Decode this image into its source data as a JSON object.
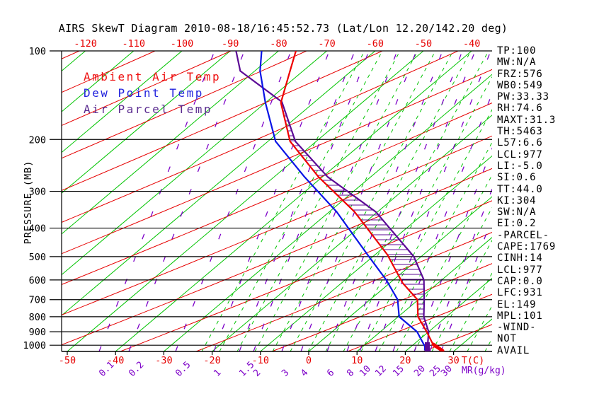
{
  "title": "AIRS SkewT Diagram 2010-08-18/16:45:52.73 (Lat/Lon 12.20/142.20 deg)",
  "legend": {
    "items": [
      {
        "label": "Ambient Air Temp",
        "color": "#ee1111"
      },
      {
        "label": "Dew Point Temp",
        "color": "#2222dd"
      },
      {
        "label": "Air Parcel Temp",
        "color": "#5c2d91"
      }
    ]
  },
  "stats": [
    "TP:100",
    "MW:N/A",
    "FRZ:576",
    "WB0:549",
    "PW:33.33",
    "RH:74.6",
    "MAXT:31.3",
    "TH:5463",
    "L57:6.6",
    "LCL:977",
    "LI:-5.0",
    "SI:0.6",
    "TT:44.0",
    "KI:304",
    "SW:N/A",
    "EI:0.2",
    "-PARCEL-",
    "CAPE:1769",
    "CINH:14",
    "LCL:977",
    "CAP:0.0",
    "LFC:931",
    "EL:149",
    "MPL:101",
    "-WIND-",
    "NOT",
    "AVAIL"
  ],
  "axes": {
    "pressure_label": "PRESSURE (MB)",
    "pressure_ticks": [
      100,
      200,
      300,
      400,
      500,
      600,
      700,
      800,
      900,
      1000
    ],
    "temp_axis_label": "T(C)",
    "temp_ticks_bottom": [
      -50,
      -40,
      -30,
      -20,
      -10,
      0,
      10,
      20,
      30
    ],
    "temp_ticks_top": [
      -120,
      -110,
      -100,
      -90,
      -80,
      -70,
      -60,
      -50,
      -40
    ],
    "mixratio_label": "MR(g/kg)",
    "mixratio_ticks": [
      "0.1",
      "0.2",
      "0.5",
      "1",
      "1.5",
      "2",
      "3",
      "4",
      "6",
      "8",
      "10",
      "12",
      "15",
      "20",
      "25",
      "30"
    ]
  },
  "colors": {
    "isotherm": "#00c400",
    "dry_adiabat": "#e60000",
    "moist_adiabat": "#00c400",
    "mixing_ratio": "#7d00c8",
    "pressure_line": "#000000",
    "axis_red": "#e60000",
    "ambient": "#ee0000",
    "dewpoint": "#0a14e6",
    "parcel": "#5c0a96",
    "hatch": "#5c0a96"
  },
  "chart_data": {
    "type": "line",
    "subtype": "skew-t-log-p",
    "title": "AIRS SkewT Diagram 2010-08-18/16:45:52.73 (Lat/Lon 12.20/142.20 deg)",
    "xlabel": "T(C)",
    "ylabel": "PRESSURE (MB)",
    "pressure_range": [
      100,
      1050
    ],
    "temp_range_bottom_axis": [
      -50,
      30
    ],
    "temp_range_top_axis": [
      -120,
      -40
    ],
    "grid": {
      "isotherm_step_C": 10,
      "pressure_lines_mb": [
        100,
        200,
        300,
        400,
        500,
        600,
        700,
        800,
        900,
        1000
      ]
    },
    "legend_position": "top-left-inside",
    "series": [
      {
        "name": "Ambient Air Temp",
        "color_key": "ambient",
        "points_p_t": [
          [
            100,
            -76.4
          ],
          [
            117,
            -72.7
          ],
          [
            150,
            -66.8
          ],
          [
            203,
            -55.4
          ],
          [
            268,
            -40.8
          ],
          [
            352,
            -24.8
          ],
          [
            492,
            -7.5
          ],
          [
            614,
            2.6
          ],
          [
            700,
            9.8
          ],
          [
            800,
            14.1
          ],
          [
            900,
            19.6
          ],
          [
            1009,
            24.7
          ],
          [
            1042,
            27.3
          ]
        ]
      },
      {
        "name": "Dew Point Temp",
        "color_key": "dewpoint",
        "points_p_t": [
          [
            100,
            -83.5
          ],
          [
            117,
            -78.9
          ],
          [
            150,
            -70.0
          ],
          [
            203,
            -58.4
          ],
          [
            268,
            -43.7
          ],
          [
            352,
            -28.5
          ],
          [
            500,
            -10.8
          ],
          [
            600,
            -1.5
          ],
          [
            700,
            5.7
          ],
          [
            800,
            10.2
          ],
          [
            900,
            17.6
          ],
          [
            1009,
            22.8
          ],
          [
            1042,
            23.8
          ]
        ]
      },
      {
        "name": "Air Parcel Temp",
        "color_key": "parcel",
        "points_p_t": [
          [
            100,
            -88.8
          ],
          [
            117,
            -83.0
          ],
          [
            149,
            -66.8
          ],
          [
            203,
            -54.3
          ],
          [
            268,
            -38.9
          ],
          [
            352,
            -20.4
          ],
          [
            500,
            -1.5
          ],
          [
            600,
            6.3
          ],
          [
            700,
            11.2
          ],
          [
            800,
            15.3
          ],
          [
            900,
            20.0
          ],
          [
            1000,
            23.1
          ],
          [
            1045,
            24.6
          ]
        ]
      }
    ],
    "cape_hatch_between": [
      "Ambient Air Temp",
      "Air Parcel Temp"
    ],
    "layout_hints": {
      "mixratio_bottom_x": [
        140,
        182,
        248,
        302,
        338,
        358,
        398,
        425,
        462,
        490,
        508,
        530,
        555,
        585,
        607,
        623
      ]
    }
  }
}
